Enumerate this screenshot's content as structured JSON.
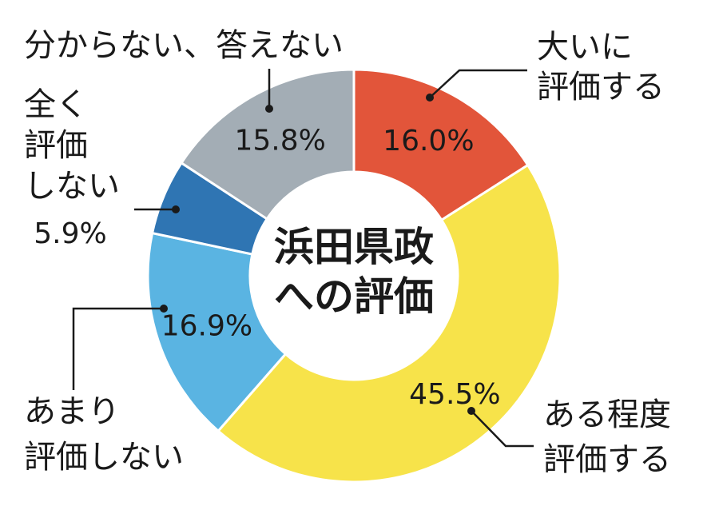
{
  "chart_data": {
    "type": "pie",
    "donut": true,
    "center_title": [
      "浜田県政",
      "への評価"
    ],
    "slices": [
      {
        "label": [
          "大いに",
          "評価する"
        ],
        "value": 16.0,
        "value_text": "16.0%",
        "color": "#e2553a"
      },
      {
        "label": [
          "ある程度",
          "評価する"
        ],
        "value": 45.5,
        "value_text": "45.5%",
        "color": "#f7e34a"
      },
      {
        "label": [
          "あまり",
          "評価しない"
        ],
        "value": 16.9,
        "value_text": "16.9%",
        "color": "#5ab4e2"
      },
      {
        "label": [
          "全く",
          "評価",
          "しない"
        ],
        "value": 5.9,
        "value_text": "5.9%",
        "color": "#2f75b3"
      },
      {
        "label": [
          "分からない、答えない"
        ],
        "value": 15.8,
        "value_text": "15.8%",
        "color": "#a3adb5"
      }
    ]
  }
}
